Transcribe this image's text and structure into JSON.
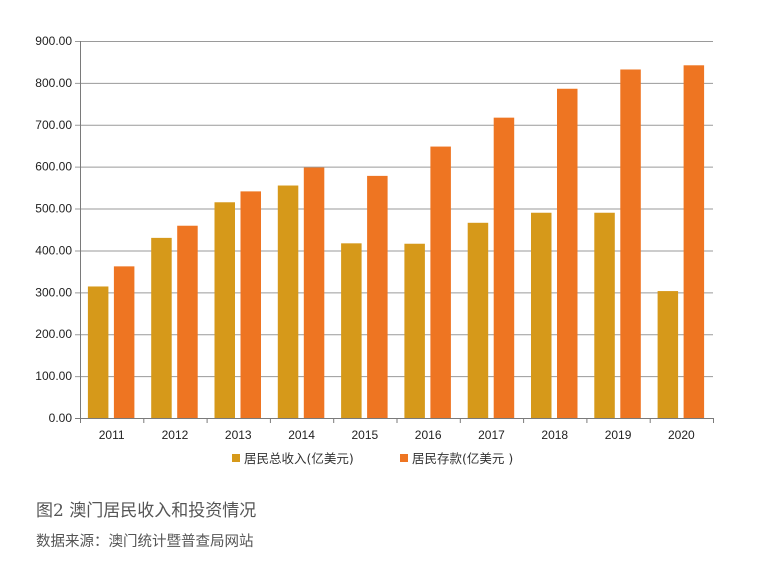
{
  "chart_data": {
    "type": "bar",
    "categories": [
      "2011",
      "2012",
      "2013",
      "2014",
      "2015",
      "2016",
      "2017",
      "2018",
      "2019",
      "2020"
    ],
    "series": [
      {
        "name": "居民总收入(亿美元)",
        "color": "#D6991A",
        "values": [
          314,
          430,
          515,
          555,
          417,
          416,
          466,
          490,
          490,
          303
        ]
      },
      {
        "name": "居民存款(亿美元 )",
        "color": "#EE7522",
        "values": [
          362,
          459,
          541,
          598,
          578,
          648,
          717,
          786,
          832,
          842
        ]
      }
    ],
    "yticks": [
      "0.00",
      "100.00",
      "200.00",
      "300.00",
      "400.00",
      "500.00",
      "600.00",
      "700.00",
      "800.00",
      "900.00"
    ],
    "ylim": [
      0,
      900
    ],
    "grid": true,
    "legend_position": "bottom"
  },
  "caption": {
    "title": "图2  澳门居民收入和投资情况",
    "source": "数据来源：澳门统计暨普查局网站"
  }
}
